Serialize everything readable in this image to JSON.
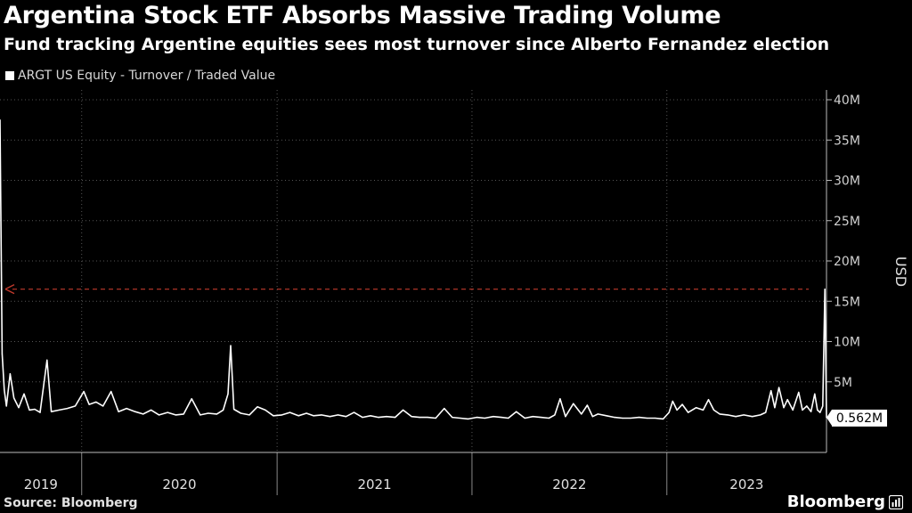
{
  "header": {
    "title": "Argentina Stock ETF Absorbs Massive Trading Volume",
    "subtitle": "Fund tracking Argentine equities sees most turnover since Alberto Fernandez election"
  },
  "footer": {
    "source": "Source: Bloomberg",
    "brand": "Bloomberg"
  },
  "colors": {
    "background": "#000000",
    "line": "#ffffff",
    "reference_line": "#c0392b",
    "grid": "#555555"
  },
  "chart_data": {
    "type": "line",
    "legend": {
      "label": "ARGT US Equity - Turnover / Traded Value",
      "position": "top-left"
    },
    "ylabel": "USD",
    "ylim": [
      0,
      40000000
    ],
    "yticks": [
      5000000,
      10000000,
      15000000,
      20000000,
      25000000,
      30000000,
      35000000,
      40000000
    ],
    "ytick_labels": [
      "5M",
      "10M",
      "15M",
      "20M",
      "25M",
      "30M",
      "35M",
      "40M"
    ],
    "xlim": [
      "2019-08-01",
      "2023-10-27"
    ],
    "x_year_labels": [
      "2019",
      "2020",
      "2021",
      "2022",
      "2023"
    ],
    "last_value_label": "0.562M",
    "last_value": 562000,
    "reference_line": {
      "value": 16500000,
      "style": "dashed-arrow-left"
    },
    "grid": true,
    "series": [
      {
        "points": [
          [
            "2019-08-01",
            37500000
          ],
          [
            "2019-08-05",
            8500000
          ],
          [
            "2019-08-09",
            4000000
          ],
          [
            "2019-08-13",
            2000000
          ],
          [
            "2019-08-20",
            6000000
          ],
          [
            "2019-08-27",
            3000000
          ],
          [
            "2019-09-05",
            1800000
          ],
          [
            "2019-09-15",
            3500000
          ],
          [
            "2019-09-25",
            1500000
          ],
          [
            "2019-10-05",
            1600000
          ],
          [
            "2019-10-15",
            1200000
          ],
          [
            "2019-10-28",
            7700000
          ],
          [
            "2019-11-05",
            1300000
          ],
          [
            "2019-11-20",
            1500000
          ],
          [
            "2019-12-05",
            1700000
          ],
          [
            "2019-12-20",
            2000000
          ],
          [
            "2020-01-05",
            3800000
          ],
          [
            "2020-01-15",
            2200000
          ],
          [
            "2020-01-28",
            2500000
          ],
          [
            "2020-02-10",
            2000000
          ],
          [
            "2020-02-25",
            3800000
          ],
          [
            "2020-03-10",
            1300000
          ],
          [
            "2020-03-25",
            1700000
          ],
          [
            "2020-04-10",
            1300000
          ],
          [
            "2020-04-25",
            1000000
          ],
          [
            "2020-05-10",
            1500000
          ],
          [
            "2020-05-25",
            900000
          ],
          [
            "2020-06-10",
            1200000
          ],
          [
            "2020-06-25",
            900000
          ],
          [
            "2020-07-10",
            1000000
          ],
          [
            "2020-07-25",
            2900000
          ],
          [
            "2020-08-10",
            900000
          ],
          [
            "2020-08-25",
            1100000
          ],
          [
            "2020-09-10",
            1000000
          ],
          [
            "2020-09-22",
            1500000
          ],
          [
            "2020-10-01",
            3500000
          ],
          [
            "2020-10-06",
            9500000
          ],
          [
            "2020-10-12",
            1600000
          ],
          [
            "2020-10-25",
            1100000
          ],
          [
            "2020-11-10",
            900000
          ],
          [
            "2020-11-25",
            1900000
          ],
          [
            "2020-12-10",
            1500000
          ],
          [
            "2020-12-25",
            800000
          ],
          [
            "2021-01-10",
            900000
          ],
          [
            "2021-01-25",
            1200000
          ],
          [
            "2021-02-10",
            800000
          ],
          [
            "2021-02-25",
            1100000
          ],
          [
            "2021-03-10",
            800000
          ],
          [
            "2021-03-25",
            900000
          ],
          [
            "2021-04-10",
            700000
          ],
          [
            "2021-04-25",
            900000
          ],
          [
            "2021-05-10",
            700000
          ],
          [
            "2021-05-25",
            1200000
          ],
          [
            "2021-06-10",
            600000
          ],
          [
            "2021-06-25",
            800000
          ],
          [
            "2021-07-10",
            600000
          ],
          [
            "2021-07-25",
            700000
          ],
          [
            "2021-08-10",
            600000
          ],
          [
            "2021-08-25",
            1500000
          ],
          [
            "2021-09-10",
            700000
          ],
          [
            "2021-09-25",
            600000
          ],
          [
            "2021-10-10",
            600000
          ],
          [
            "2021-10-25",
            500000
          ],
          [
            "2021-11-10",
            1700000
          ],
          [
            "2021-11-25",
            600000
          ],
          [
            "2021-12-10",
            500000
          ],
          [
            "2021-12-25",
            400000
          ],
          [
            "2022-01-10",
            600000
          ],
          [
            "2022-01-25",
            500000
          ],
          [
            "2022-02-10",
            700000
          ],
          [
            "2022-02-25",
            600000
          ],
          [
            "2022-03-10",
            500000
          ],
          [
            "2022-03-25",
            1300000
          ],
          [
            "2022-04-10",
            500000
          ],
          [
            "2022-04-25",
            700000
          ],
          [
            "2022-05-10",
            600000
          ],
          [
            "2022-05-25",
            500000
          ],
          [
            "2022-06-05",
            900000
          ],
          [
            "2022-06-15",
            2900000
          ],
          [
            "2022-06-25",
            700000
          ],
          [
            "2022-07-10",
            2300000
          ],
          [
            "2022-07-25",
            1000000
          ],
          [
            "2022-08-05",
            2100000
          ],
          [
            "2022-08-15",
            700000
          ],
          [
            "2022-08-25",
            1000000
          ],
          [
            "2022-09-10",
            800000
          ],
          [
            "2022-09-25",
            600000
          ],
          [
            "2022-10-10",
            500000
          ],
          [
            "2022-10-25",
            500000
          ],
          [
            "2022-11-10",
            600000
          ],
          [
            "2022-11-25",
            500000
          ],
          [
            "2022-12-10",
            500000
          ],
          [
            "2022-12-25",
            400000
          ],
          [
            "2023-01-05",
            1200000
          ],
          [
            "2023-01-12",
            2600000
          ],
          [
            "2023-01-20",
            1500000
          ],
          [
            "2023-01-30",
            2200000
          ],
          [
            "2023-02-10",
            1200000
          ],
          [
            "2023-02-25",
            1800000
          ],
          [
            "2023-03-10",
            1500000
          ],
          [
            "2023-03-20",
            2800000
          ],
          [
            "2023-03-30",
            1500000
          ],
          [
            "2023-04-10",
            1000000
          ],
          [
            "2023-04-25",
            900000
          ],
          [
            "2023-05-10",
            700000
          ],
          [
            "2023-05-25",
            900000
          ],
          [
            "2023-06-10",
            700000
          ],
          [
            "2023-06-25",
            900000
          ],
          [
            "2023-07-05",
            1200000
          ],
          [
            "2023-07-15",
            3900000
          ],
          [
            "2023-07-22",
            1800000
          ],
          [
            "2023-07-30",
            4300000
          ],
          [
            "2023-08-08",
            1800000
          ],
          [
            "2023-08-15",
            2800000
          ],
          [
            "2023-08-25",
            1500000
          ],
          [
            "2023-09-05",
            3700000
          ],
          [
            "2023-09-12",
            1500000
          ],
          [
            "2023-09-20",
            2000000
          ],
          [
            "2023-09-28",
            1300000
          ],
          [
            "2023-10-05",
            3500000
          ],
          [
            "2023-10-10",
            1500000
          ],
          [
            "2023-10-15",
            1200000
          ],
          [
            "2023-10-20",
            2000000
          ],
          [
            "2023-10-24",
            16500000
          ],
          [
            "2023-10-27",
            562000
          ]
        ]
      }
    ]
  }
}
